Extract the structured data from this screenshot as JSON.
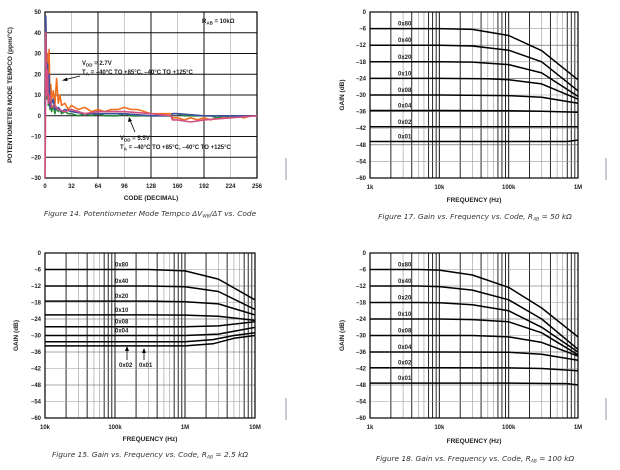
{
  "chart_data": [
    {
      "id": "fig14",
      "type": "line",
      "caption": "Figure 14. Potentiometer Mode Tempco ΔV",
      "caption_sub": "WB",
      "caption_end": "/ΔT vs. Code",
      "xlabel": "CODE (DECIMAL)",
      "ylabel": "POTENTIOMETER MODE TEMPCO (ppm/°C)",
      "xlim": [
        0,
        256
      ],
      "ylim": [
        -30,
        50
      ],
      "xticks": [
        "0",
        "32",
        "64",
        "96",
        "128",
        "160",
        "192",
        "224",
        "256"
      ],
      "yticks": [
        "50",
        "40",
        "30",
        "20",
        "10",
        "0",
        "–10",
        "–20",
        "–30"
      ],
      "grid": true,
      "annotations": {
        "rab": "R",
        "rab_sub": "AB",
        "rab_val": " = 10kΩ",
        "vdd_low": "V",
        "vdd_low_sub": "DD",
        "vdd_low_val": " = 2.7V",
        "ta_low": "T",
        "ta_low_sub": "A",
        "ta_low_val": " = –40°C TO +85°C, –40°C TO +125°C",
        "vdd_high": "V",
        "vdd_high_sub": "DD",
        "vdd_high_val": " = 5.5V",
        "ta_high": "T",
        "ta_high_sub": "A",
        "ta_high_val": " = –40°C TO +85°C, –40°C TO +125°C"
      },
      "series": [
        {
          "name": "orange",
          "color": "#f07020",
          "x": [
            0,
            1,
            2,
            3,
            4,
            5,
            6,
            7,
            8,
            10,
            12,
            14,
            16,
            18,
            20,
            24,
            28,
            32,
            40,
            48,
            56,
            64,
            72,
            80,
            88,
            96,
            104,
            112,
            120,
            128,
            136,
            144,
            152,
            154,
            160,
            168,
            176,
            184,
            192,
            200,
            208,
            216,
            224,
            232,
            240,
            248,
            256
          ],
          "y": [
            10,
            46,
            20,
            30,
            12,
            32,
            6,
            15,
            8,
            12,
            5,
            18,
            6,
            10,
            5,
            6,
            3,
            5,
            3,
            4,
            2,
            3,
            2,
            3,
            3,
            4,
            3,
            3,
            2,
            1,
            1,
            1,
            1,
            -1,
            -1,
            -2,
            -1,
            -2,
            -1,
            -2,
            -1,
            -1,
            -1,
            0,
            -1,
            0,
            0
          ]
        },
        {
          "name": "green",
          "color": "#2a8a3a",
          "x": [
            0,
            1,
            2,
            3,
            4,
            5,
            6,
            7,
            8,
            10,
            12,
            14,
            16,
            18,
            20,
            24,
            28,
            32,
            40,
            48,
            56,
            64,
            72,
            80,
            88,
            96,
            104,
            112,
            120,
            128,
            136,
            144,
            152,
            154,
            160,
            168,
            176,
            184,
            192,
            200,
            208,
            216,
            224,
            232,
            240,
            248,
            256
          ],
          "y": [
            5,
            30,
            8,
            20,
            5,
            18,
            3,
            8,
            2,
            5,
            1,
            4,
            2,
            3,
            1,
            2,
            1,
            1,
            0,
            1,
            0,
            1,
            0,
            0,
            0,
            1,
            0,
            0,
            0,
            0,
            0,
            0,
            0,
            1,
            1,
            0,
            0,
            0,
            0,
            0,
            -1,
            0,
            -1,
            0,
            0,
            0,
            0
          ]
        },
        {
          "name": "blue",
          "color": "#4050a0",
          "x": [
            0,
            1,
            2,
            3,
            4,
            5,
            6,
            8,
            10,
            12,
            16,
            20,
            24,
            32,
            48,
            64,
            96,
            128,
            152,
            154,
            160,
            192,
            224,
            256
          ],
          "y": [
            0,
            48,
            15,
            25,
            8,
            20,
            4,
            6,
            8,
            3,
            4,
            2,
            3,
            2,
            1,
            1,
            1,
            0,
            0,
            1,
            1,
            0,
            0,
            0
          ]
        },
        {
          "name": "pink",
          "color": "#d05080",
          "x": [
            0,
            0.5,
            1,
            2,
            3,
            4,
            6,
            8,
            12,
            16,
            24,
            32,
            48,
            64,
            96,
            128,
            152,
            154,
            160,
            176,
            192,
            224,
            256
          ],
          "y": [
            -30,
            -10,
            40,
            10,
            22,
            6,
            10,
            4,
            5,
            3,
            2,
            3,
            1,
            2,
            2,
            1,
            0,
            -2,
            -2,
            -3,
            -2,
            -1,
            0
          ]
        }
      ]
    },
    {
      "id": "fig17",
      "type": "line",
      "caption": "Figure 17. Gain vs. Frequency vs. Code, R",
      "caption_sub": "AB",
      "caption_end": " = 50 kΩ",
      "xlabel": "FREQUENCY (Hz)",
      "ylabel": "GAIN (dB)",
      "xscale": "log",
      "xlim": [
        1000,
        1000000
      ],
      "ylim": [
        -60,
        0
      ],
      "xticks": [
        "1k",
        "10k",
        "100k",
        "1M"
      ],
      "yticks": [
        "0",
        "–6",
        "–12",
        "–18",
        "–24",
        "–30",
        "–36",
        "–42",
        "–48",
        "–54",
        "–60"
      ],
      "grid": true,
      "series": [
        {
          "name": "0x80",
          "x": [
            1000,
            10000,
            30000,
            100000,
            300000,
            1000000
          ],
          "y": [
            -6,
            -6,
            -6.3,
            -8.5,
            -14,
            -24.5
          ]
        },
        {
          "name": "0x40",
          "x": [
            1000,
            10000,
            30000,
            100000,
            300000,
            1000000
          ],
          "y": [
            -12,
            -12,
            -12.3,
            -13.8,
            -18,
            -28.5
          ]
        },
        {
          "name": "0x20",
          "x": [
            1000,
            10000,
            30000,
            100000,
            300000,
            1000000
          ],
          "y": [
            -18,
            -18,
            -18.1,
            -19,
            -22,
            -30.5
          ]
        },
        {
          "name": "0x10",
          "x": [
            1000,
            10000,
            50000,
            100000,
            300000,
            1000000
          ],
          "y": [
            -24,
            -24,
            -24.1,
            -24.5,
            -26,
            -31.5
          ]
        },
        {
          "name": "0x08",
          "x": [
            1000,
            10000,
            100000,
            300000,
            1000000
          ],
          "y": [
            -30,
            -30,
            -30.2,
            -30.8,
            -33
          ]
        },
        {
          "name": "0x04",
          "x": [
            1000,
            10000,
            100000,
            300000,
            1000000
          ],
          "y": [
            -35.6,
            -35.6,
            -35.7,
            -35.9,
            -36.2
          ]
        },
        {
          "name": "0x02",
          "x": [
            1000,
            10000,
            100000,
            1000000
          ],
          "y": [
            -41.5,
            -41.5,
            -41.5,
            -41.5
          ]
        },
        {
          "name": "0x01",
          "x": [
            1000,
            10000,
            100000,
            700000,
            1000000
          ],
          "y": [
            -46.8,
            -46.8,
            -46.8,
            -46.8,
            -46.3
          ]
        }
      ]
    },
    {
      "id": "fig15",
      "type": "line",
      "caption": "Figure 15. Gain vs. Frequency vs. Code, R",
      "caption_sub": "AB",
      "caption_end": " = 2.5 kΩ",
      "xlabel": "FREQUENCY (Hz)",
      "ylabel": "GAIN (dB)",
      "xscale": "log",
      "xlim": [
        10000,
        10000000
      ],
      "ylim": [
        -60,
        0
      ],
      "xticks": [
        "10k",
        "100k",
        "1M",
        "10M"
      ],
      "yticks": [
        "0",
        "–6",
        "–12",
        "–18",
        "–24",
        "–30",
        "–36",
        "–42",
        "–48",
        "–54",
        "–60"
      ],
      "grid": true,
      "arrow_labels": [
        "0x02",
        "0x01"
      ],
      "series": [
        {
          "name": "0x80",
          "x": [
            10000,
            300000,
            1000000,
            3000000,
            10000000
          ],
          "y": [
            -6,
            -6,
            -6.5,
            -9.5,
            -17
          ]
        },
        {
          "name": "0x40",
          "x": [
            10000,
            300000,
            1000000,
            3000000,
            10000000
          ],
          "y": [
            -12,
            -12,
            -12.3,
            -14,
            -20.5
          ]
        },
        {
          "name": "0x20",
          "x": [
            10000,
            300000,
            1000000,
            3000000,
            10000000
          ],
          "y": [
            -17.5,
            -17.5,
            -17.7,
            -18.5,
            -22.5
          ]
        },
        {
          "name": "0x10",
          "x": [
            10000,
            300000,
            1000000,
            3000000,
            10000000
          ],
          "y": [
            -22.5,
            -22.5,
            -22.6,
            -23,
            -24.5
          ]
        },
        {
          "name": "0x08",
          "x": [
            10000,
            300000,
            1000000,
            3000000,
            10000000
          ],
          "y": [
            -26.8,
            -26.8,
            -26.8,
            -26.5,
            -25
          ]
        },
        {
          "name": "0x04",
          "x": [
            10000,
            300000,
            1000000,
            3000000,
            10000000
          ],
          "y": [
            -30,
            -30,
            -30,
            -29.5,
            -27
          ]
        },
        {
          "name": "0x02",
          "x": [
            10000,
            300000,
            1000000,
            2500000,
            5000000,
            10000000
          ],
          "y": [
            -32.3,
            -32.3,
            -32.3,
            -31.5,
            -30,
            -29
          ]
        },
        {
          "name": "0x01",
          "x": [
            10000,
            300000,
            1000000,
            2500000,
            5000000,
            10000000
          ],
          "y": [
            -33.8,
            -33.8,
            -33.8,
            -33,
            -31,
            -30
          ]
        }
      ]
    },
    {
      "id": "fig18",
      "type": "line",
      "caption": "Figure 18. Gain vs. Frequency vs. Code, R",
      "caption_sub": "AB",
      "caption_end": " = 100 kΩ",
      "xlabel": "FREQUENCY (Hz)",
      "ylabel": "GAIN (dB)",
      "xscale": "log",
      "xlim": [
        1000,
        1000000
      ],
      "ylim": [
        -60,
        0
      ],
      "xticks": [
        "1k",
        "10k",
        "100k",
        "1M"
      ],
      "yticks": [
        "0",
        "–6",
        "–12",
        "–18",
        "–24",
        "–30",
        "–36",
        "–42",
        "–48",
        "–54",
        "–60"
      ],
      "grid": true,
      "series": [
        {
          "name": "0x80",
          "x": [
            1000,
            5000,
            10000,
            30000,
            100000,
            300000,
            1000000
          ],
          "y": [
            -6,
            -6,
            -6.2,
            -8,
            -12.5,
            -20,
            -30.5
          ]
        },
        {
          "name": "0x40",
          "x": [
            1000,
            5000,
            10000,
            30000,
            100000,
            300000,
            1000000
          ],
          "y": [
            -12,
            -12,
            -12.2,
            -13.5,
            -17,
            -24,
            -35
          ]
        },
        {
          "name": "0x20",
          "x": [
            1000,
            5000,
            10000,
            30000,
            100000,
            300000,
            1000000
          ],
          "y": [
            -18,
            -18,
            -18.1,
            -18.8,
            -21,
            -27,
            -36
          ]
        },
        {
          "name": "0x10",
          "x": [
            1000,
            10000,
            30000,
            100000,
            300000,
            1000000
          ],
          "y": [
            -24,
            -24,
            -24.2,
            -25,
            -29,
            -37
          ]
        },
        {
          "name": "0x08",
          "x": [
            1000,
            10000,
            30000,
            100000,
            300000,
            1000000
          ],
          "y": [
            -30,
            -30,
            -30,
            -30.5,
            -32.5,
            -37.5
          ]
        },
        {
          "name": "0x04",
          "x": [
            1000,
            10000,
            100000,
            300000,
            1000000
          ],
          "y": [
            -36,
            -36,
            -36.1,
            -36.8,
            -39
          ]
        },
        {
          "name": "0x02",
          "x": [
            1000,
            10000,
            100000,
            300000,
            1000000
          ],
          "y": [
            -41.7,
            -41.7,
            -41.8,
            -42,
            -42.8
          ]
        },
        {
          "name": "0x01",
          "x": [
            1000,
            10000,
            100000,
            700000,
            1000000
          ],
          "y": [
            -47.3,
            -47.3,
            -47.3,
            -47.5,
            -48
          ]
        }
      ]
    }
  ]
}
